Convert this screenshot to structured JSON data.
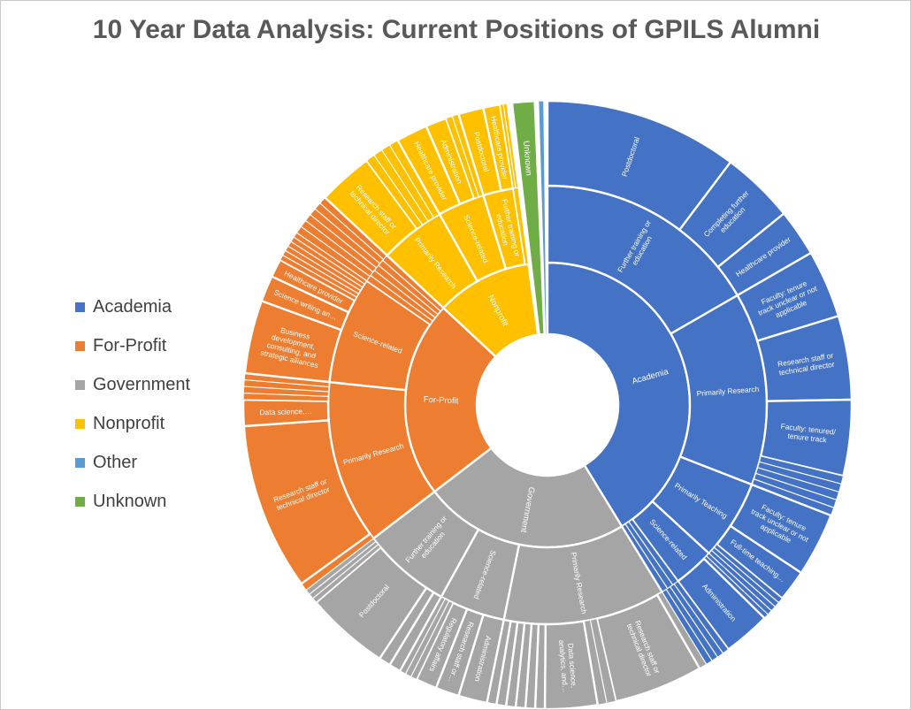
{
  "title": {
    "text": "10 Year Data Analysis: Current Positions of GPILS Alumni"
  },
  "legend": {
    "items": [
      {
        "label": "Academia",
        "color": "#4472C4"
      },
      {
        "label": "For-Profit",
        "color": "#ED7D31"
      },
      {
        "label": "Government",
        "color": "#A5A5A5"
      },
      {
        "label": "Nonprofit",
        "color": "#FFC000"
      },
      {
        "label": "Other",
        "color": "#5B9BD5"
      },
      {
        "label": "Unknown",
        "color": "#70AD47"
      }
    ]
  },
  "chart_data": {
    "type": "sunburst",
    "title": "10 Year Data Analysis: Current Positions of GPILS Alumni",
    "angle_units": "degrees clockwise from 12 o'clock; share of circle = (end-start)/360",
    "rings": [
      "sector",
      "career category",
      "position"
    ],
    "legend_position": "left",
    "categories": [
      {
        "label": "Academia",
        "color": "#4472C4",
        "start": 0,
        "end": 148.5,
        "children": [
          {
            "label": "Further training or education",
            "start": 0,
            "end": 60,
            "children": [
              {
                "label": "Postdoctoral",
                "start": 0,
                "end": 37
              },
              {
                "label": "Completing further education",
                "start": 37,
                "end": 51
              },
              {
                "label": "Healthcare provider",
                "start": 51,
                "end": 60
              }
            ]
          },
          {
            "label": "Primarily Research",
            "start": 60,
            "end": 111.3,
            "children": [
              {
                "label": "Faculty: tenure track unclear or not applicable",
                "start": 60,
                "end": 73
              },
              {
                "label": "Research staff or technical director",
                "start": 73,
                "end": 89
              },
              {
                "label": "Faculty: tenured/ tenure track",
                "start": 89,
                "end": 103.5
              },
              {
                "label": "",
                "start": 103.5,
                "end": 111.3,
                "slices": 5
              }
            ]
          },
          {
            "label": "Primarily Teaching",
            "start": 111.3,
            "end": 132.6,
            "children": [
              {
                "label": "Faculty: tenure track unclear or not applicable",
                "start": 111.3,
                "end": 123.5
              },
              {
                "label": "Full-time teaching…",
                "start": 123.5,
                "end": 129.5
              },
              {
                "label": "",
                "start": 129.5,
                "end": 132.6,
                "slices": 3
              }
            ]
          },
          {
            "label": "Science-related",
            "start": 132.6,
            "end": 143.5,
            "children": [
              {
                "label": "",
                "start": 132.6,
                "end": 134.5,
                "slices": 2
              },
              {
                "label": "Administration",
                "start": 134.5,
                "end": 143.5
              }
            ]
          },
          {
            "label": "",
            "start": 143.5,
            "end": 148.5,
            "slices": 3,
            "children": [
              {
                "label": "",
                "start": 143.5,
                "end": 148.5,
                "slices": 4
              }
            ]
          }
        ]
      },
      {
        "label": "Government",
        "color": "#A5A5A5",
        "start": 148.5,
        "end": 232.5,
        "children": [
          {
            "label": "Primarily Research",
            "start": 148.5,
            "end": 191.5,
            "children": [
              {
                "label": "",
                "start": 148.5,
                "end": 150,
                "slices": 1
              },
              {
                "label": "Research staff or technical director",
                "start": 150,
                "end": 167
              },
              {
                "label": "",
                "start": 167,
                "end": 170.5,
                "slices": 2
              },
              {
                "label": "Data science, analytics, and…",
                "start": 170.5,
                "end": 180.5
              },
              {
                "label": "",
                "start": 180.5,
                "end": 191.5,
                "slices": 6
              }
            ]
          },
          {
            "label": "Science-related",
            "start": 191.5,
            "end": 209,
            "children": [
              {
                "label": "Administration",
                "start": 191.5,
                "end": 197
              },
              {
                "label": "Research staff or…",
                "start": 197,
                "end": 201.5
              },
              {
                "label": "Regulatory affairs",
                "start": 201.5,
                "end": 205.5
              },
              {
                "label": "",
                "start": 205.5,
                "end": 209,
                "slices": 3
              }
            ]
          },
          {
            "label": "Further training or education",
            "start": 209,
            "end": 232.5,
            "children": [
              {
                "label": "",
                "start": 209,
                "end": 213.5,
                "slices": 2
              },
              {
                "label": "Postdoctoral",
                "start": 213.5,
                "end": 229.5
              },
              {
                "label": "",
                "start": 229.5,
                "end": 232.5,
                "slices": 3
              }
            ]
          }
        ]
      },
      {
        "label": "For-Profit",
        "color": "#ED7D31",
        "start": 232.5,
        "end": 313,
        "children": [
          {
            "label": "Primarily Research",
            "start": 232.5,
            "end": 276,
            "children": [
              {
                "label": "",
                "start": 232.5,
                "end": 234,
                "slices": 1
              },
              {
                "label": "Research staff or technical director",
                "start": 234,
                "end": 266
              },
              {
                "label": "Data science,…",
                "start": 266,
                "end": 271
              },
              {
                "label": "",
                "start": 271,
                "end": 276,
                "slices": 4
              }
            ]
          },
          {
            "label": "Science-related",
            "start": 276,
            "end": 304.5,
            "children": [
              {
                "label": "Business development, consulting, and strategic alliances",
                "start": 276,
                "end": 290
              },
              {
                "label": "Science writing an…",
                "start": 290,
                "end": 295
              },
              {
                "label": "Healthcare provider",
                "start": 295,
                "end": 298.5
              },
              {
                "label": "",
                "start": 298.5,
                "end": 304.5,
                "slices": 6
              }
            ]
          },
          {
            "label": "",
            "start": 304.5,
            "end": 313,
            "slices": 5,
            "children": [
              {
                "label": "",
                "start": 304.5,
                "end": 313,
                "slices": 6
              }
            ]
          }
        ]
      },
      {
        "label": "Nonprofit",
        "color": "#FFC000",
        "start": 313,
        "end": 352.3,
        "children": [
          {
            "label": "Primarily Research",
            "start": 313,
            "end": 330.5,
            "children": [
              {
                "label": "Research staff or technical director",
                "start": 313,
                "end": 323.5
              },
              {
                "label": "",
                "start": 323.5,
                "end": 330.5,
                "slices": 4
              }
            ]
          },
          {
            "label": "Science-related",
            "start": 330.5,
            "end": 343,
            "children": [
              {
                "label": "Healthcare provider",
                "start": 330.5,
                "end": 336.5
              },
              {
                "label": "Administration",
                "start": 336.5,
                "end": 340.5
              },
              {
                "label": "",
                "start": 340.5,
                "end": 343,
                "slices": 2
              }
            ]
          },
          {
            "label": "Further training or education",
            "start": 343,
            "end": 351,
            "children": [
              {
                "label": "Postdoctoral",
                "start": 343,
                "end": 347.8
              },
              {
                "label": "Healthcare provider",
                "start": 347.8,
                "end": 351
              }
            ]
          },
          {
            "label": "",
            "start": 351,
            "end": 352.3,
            "slices": 1,
            "children": [
              {
                "label": "",
                "start": 351,
                "end": 352.3,
                "slices": 2
              }
            ]
          }
        ]
      },
      {
        "label": "Unknown",
        "color": "#70AD47",
        "start": 353.3,
        "end": 357.6
      },
      {
        "label": "Other",
        "color": "#5B9BD5",
        "start": 358.3,
        "end": 359.3
      }
    ]
  }
}
